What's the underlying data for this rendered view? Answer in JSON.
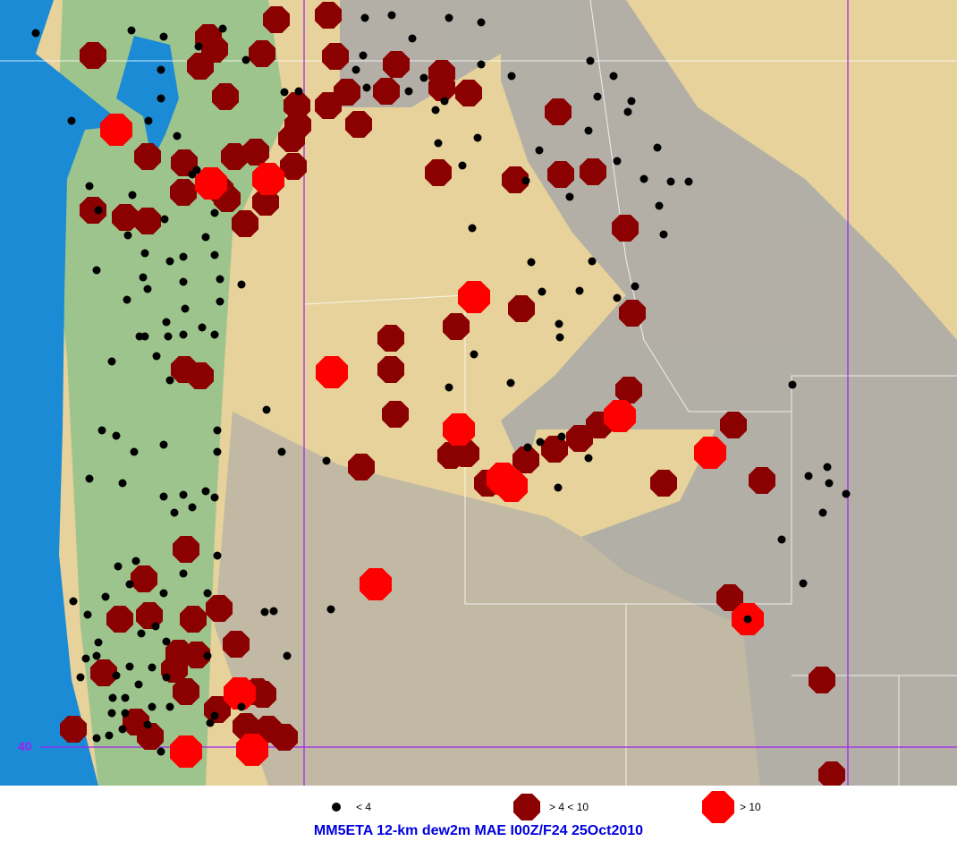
{
  "map": {
    "latitude_label": "40",
    "colors": {
      "ocean": "#1b8bd6",
      "land": "#e6d29a",
      "mountain": "#a8a8a8",
      "lowland_green": "#8cc08a",
      "grid_line": "#a020f0",
      "small": "#000000",
      "medium": "#8b0000",
      "large": "#ff0000"
    }
  },
  "legend": [
    {
      "label": "< 4",
      "icon": "black-dot",
      "color": "#000000"
    },
    {
      "label": "> 4 < 10",
      "icon": "dark-red-octagon",
      "color": "#8b0000"
    },
    {
      "label": "> 10",
      "icon": "red-octagon",
      "color": "#ff0000"
    }
  ],
  "title": "MM5ETA 12-km dew2m MAE I00Z/F24 25Oct2010"
}
